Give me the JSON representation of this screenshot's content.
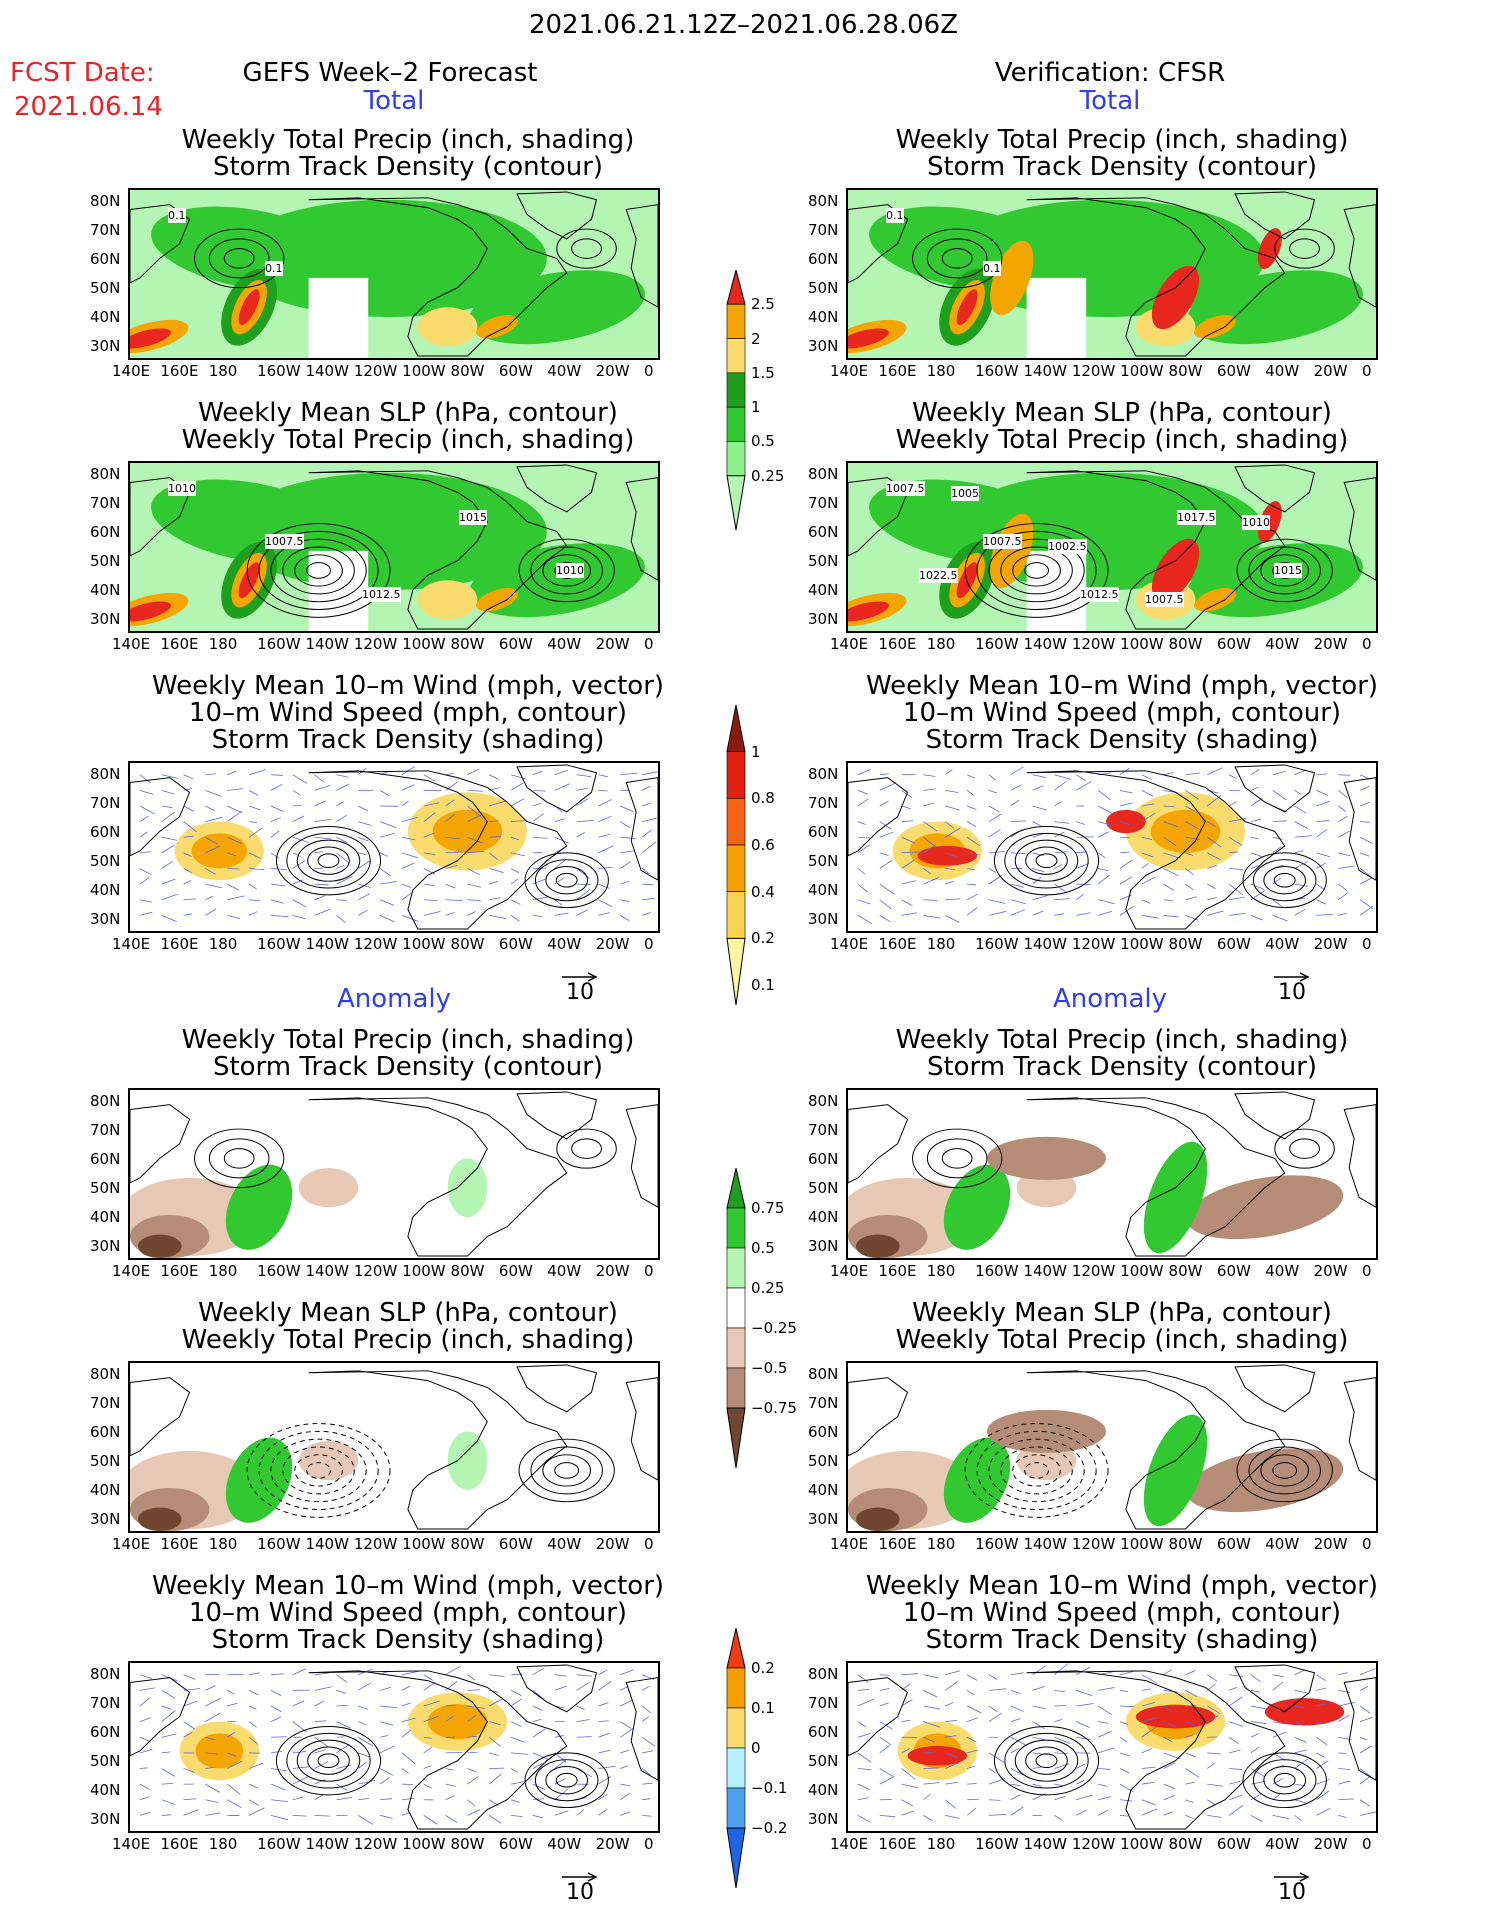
{
  "header": {
    "date_range": "2021.06.21.12Z–2021.06.28.06Z",
    "fcst_label": "FCST Date:",
    "fcst_date": "2021.06.14",
    "left_title": "GEFS Week–2 Forecast",
    "right_title": "Verification: CFSR"
  },
  "sections": {
    "total": "Total",
    "anomaly": "Anomaly"
  },
  "panel_titles": {
    "precip": [
      "Weekly Total Precip (inch, shading)",
      "Storm Track Density (contour)"
    ],
    "slp": [
      "Weekly Mean SLP (hPa, contour)",
      "Weekly Total Precip (inch, shading)"
    ],
    "wind": [
      "Weekly Mean 10–m Wind (mph, vector)",
      "10–m Wind Speed (mph, contour)",
      "Storm Track Density (shading)"
    ]
  },
  "axes": {
    "lat_ticks": [
      "80N",
      "70N",
      "60N",
      "50N",
      "40N",
      "30N"
    ],
    "lon_ticks": [
      "140E",
      "160E",
      "180",
      "160W",
      "140W",
      "120W",
      "100W",
      "80W",
      "60W",
      "40W",
      "20W",
      "0"
    ]
  },
  "vector_ref": "10",
  "contour_labels": {
    "gefs_precip_total": [
      "0.1",
      "0.1"
    ],
    "cfsr_precip_total": [
      "0.1",
      "0.1"
    ],
    "gefs_slp_total": [
      "1010",
      "1007.5",
      "1012.5",
      "1015",
      "1010"
    ],
    "cfsr_slp_total": [
      "1007.5",
      "1007.5",
      "1012.5",
      "1017.5",
      "1015",
      "1005",
      "1002.5",
      "1007.5",
      "1010",
      "1022.5"
    ]
  },
  "colorbars": {
    "precip_total": {
      "labels": [
        "2.5",
        "2",
        "1.5",
        "1",
        "0.5",
        "0.25"
      ],
      "colors": [
        "#e8281e",
        "#f5a500",
        "#fadc6e",
        "#1ea01e",
        "#32c832",
        "#8cf08c",
        "#b4f5b4"
      ]
    },
    "std_total": {
      "labels": [
        "1",
        "0.8",
        "0.6",
        "0.4",
        "0.2",
        "0.1"
      ],
      "colors": [
        "#8b1a10",
        "#e02010",
        "#f56414",
        "#f5a000",
        "#fad250",
        "#fff5a0"
      ]
    },
    "precip_anom": {
      "labels": [
        "0.75",
        "0.5",
        "0.25",
        "−0.25",
        "−0.5",
        "−0.75"
      ],
      "colors": [
        "#1ea01e",
        "#32c832",
        "#b4f5b4",
        "#ffffff",
        "#e6c8b4",
        "#b48c78",
        "#6e4632"
      ]
    },
    "std_anom": {
      "labels": [
        "0.2",
        "0.1",
        "0",
        "−0.1",
        "−0.2"
      ],
      "colors": [
        "#f03c14",
        "#f5a000",
        "#fadc6e",
        "#b4f0ff",
        "#50a0f0",
        "#1e64e6"
      ]
    },
    "shading_colors": {
      "green_light": "#b4f5b4",
      "green": "#32c832",
      "green_dark": "#1ea01e",
      "yellow": "#fadc6e",
      "orange": "#f5a500",
      "red": "#e8281e",
      "brown_light": "#e6c8b4",
      "brown": "#b48c78",
      "brown_dark": "#6e4632",
      "vector": "#5a64e6"
    }
  }
}
